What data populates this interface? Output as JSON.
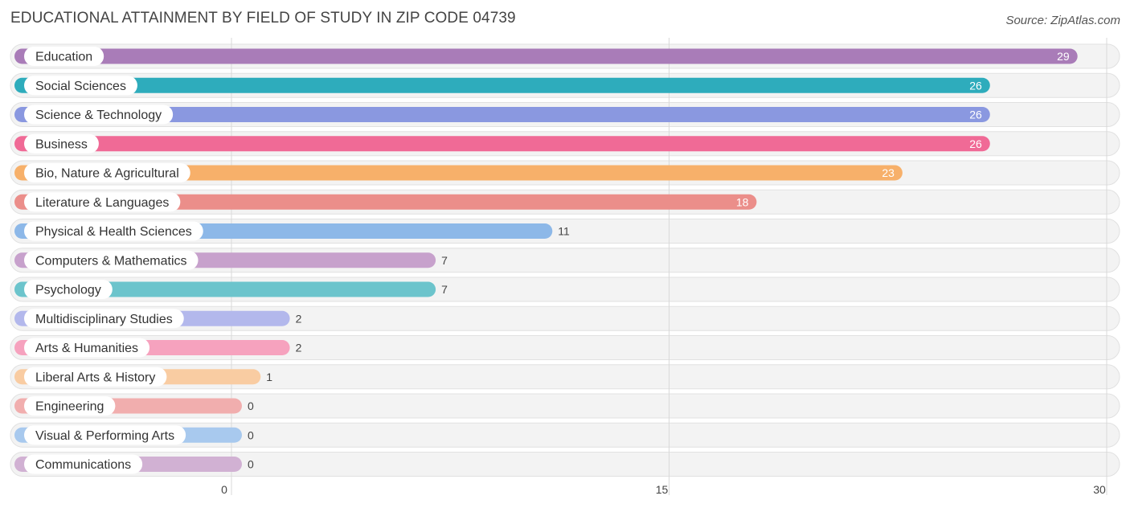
{
  "title": "EDUCATIONAL ATTAINMENT BY FIELD OF STUDY IN ZIP CODE 04739",
  "source": "Source: ZipAtlas.com",
  "chart_data": {
    "type": "bar",
    "orientation": "horizontal",
    "title": "EDUCATIONAL ATTAINMENT BY FIELD OF STUDY IN ZIP CODE 04739",
    "xlim": [
      0,
      30
    ],
    "xticks": [
      0,
      15,
      30
    ],
    "categories": [
      "Education",
      "Social Sciences",
      "Science & Technology",
      "Business",
      "Bio, Nature & Agricultural",
      "Literature & Languages",
      "Physical & Health Sciences",
      "Computers & Mathematics",
      "Psychology",
      "Multidisciplinary Studies",
      "Arts & Humanities",
      "Liberal Arts & History",
      "Engineering",
      "Visual & Performing Arts",
      "Communications"
    ],
    "values": [
      29,
      26,
      26,
      26,
      23,
      18,
      11,
      7,
      7,
      2,
      2,
      1,
      0,
      0,
      0
    ],
    "colors": [
      "#a97cb8",
      "#2eacbc",
      "#8a98e0",
      "#f06a96",
      "#f7b06a",
      "#eb8e8a",
      "#8db8e8",
      "#c7a1cc",
      "#6cc4cc",
      "#b3b8ec",
      "#f6a2be",
      "#f9cca2",
      "#f1aeae",
      "#a8c9ee",
      "#d1b1d3"
    ],
    "grid": true,
    "legend": "none"
  }
}
